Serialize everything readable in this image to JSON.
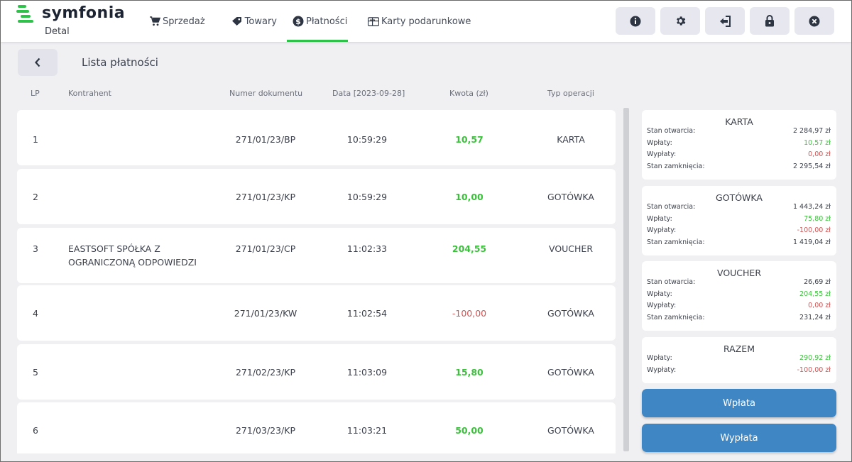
{
  "brand": {
    "name": "symfonia",
    "sub": "Detal",
    "accent": "#2fc24a"
  },
  "nav": [
    {
      "label": "Sprzedaż",
      "icon": "cart-icon"
    },
    {
      "label": "Towary",
      "icon": "tag-icon"
    },
    {
      "label": "Płatności",
      "icon": "dollar-circle-icon",
      "active": true
    },
    {
      "label": "Karty podarunkowe",
      "icon": "gift-card-icon"
    }
  ],
  "toolbar": [
    "info-icon",
    "gear-icon",
    "logout-icon",
    "lock-icon",
    "close-icon"
  ],
  "page": {
    "title": "Lista płatności"
  },
  "columns": {
    "lp": "LP",
    "kontrahent": "Kontrahent",
    "numer": "Numer dokumentu",
    "data": "Data [2023-09-28]",
    "kwota": "Kwota (zł)",
    "typ": "Typ operacji"
  },
  "rows": [
    {
      "lp": "1",
      "kontrahent": "",
      "numer": "271/01/23/BP",
      "time": "10:59:29",
      "kwota": "10,57",
      "sign": "pos",
      "typ": "KARTA"
    },
    {
      "lp": "2",
      "kontrahent": "",
      "numer": "271/01/23/KP",
      "time": "10:59:29",
      "kwota": "10,00",
      "sign": "pos",
      "typ": "GOTÓWKA"
    },
    {
      "lp": "3",
      "kontrahent": "EASTSOFT SPÓŁKA Z OGRANICZONĄ ODPOWIEDZI",
      "kontrahent_l1": "EASTSOFT SPÓŁKA Z",
      "kontrahent_l2": "OGRANICZONĄ ODPOWIEDZI",
      "numer": "271/01/23/CP",
      "time": "11:02:33",
      "kwota": "204,55",
      "sign": "pos",
      "typ": "VOUCHER"
    },
    {
      "lp": "4",
      "kontrahent": "",
      "numer": "271/01/23/KW",
      "time": "11:02:54",
      "kwota": "-100,00",
      "sign": "neg",
      "typ": "GOTÓWKA"
    },
    {
      "lp": "5",
      "kontrahent": "",
      "numer": "271/02/23/KP",
      "time": "11:03:09",
      "kwota": "15,80",
      "sign": "pos",
      "typ": "GOTÓWKA"
    },
    {
      "lp": "6",
      "kontrahent": "",
      "numer": "271/03/23/KP",
      "time": "11:03:21",
      "kwota": "50,00",
      "sign": "pos",
      "typ": "GOTÓWKA"
    }
  ],
  "summary": [
    {
      "title": "KARTA",
      "items": [
        {
          "k": "Stan otwarcia:",
          "v": "2 284,97 zł",
          "c": ""
        },
        {
          "k": "Wpłaty:",
          "v": "10,57 zł",
          "c": "pos"
        },
        {
          "k": "Wypłaty:",
          "v": "0,00 zł",
          "c": "neg"
        },
        {
          "k": "Stan zamknięcia:",
          "v": "2 295,54 zł",
          "c": ""
        }
      ]
    },
    {
      "title": "GOTÓWKA",
      "items": [
        {
          "k": "Stan otwarcia:",
          "v": "1 443,24 zł",
          "c": ""
        },
        {
          "k": "Wpłaty:",
          "v": "75,80 zł",
          "c": "pos"
        },
        {
          "k": "Wypłaty:",
          "v": "-100,00 zł",
          "c": "neg"
        },
        {
          "k": "Stan zamknięcia:",
          "v": "1 419,04 zł",
          "c": ""
        }
      ]
    },
    {
      "title": "VOUCHER",
      "items": [
        {
          "k": "Stan otwarcia:",
          "v": "26,69 zł",
          "c": ""
        },
        {
          "k": "Wpłaty:",
          "v": "204,55 zł",
          "c": "pos"
        },
        {
          "k": "Wypłaty:",
          "v": "0,00 zł",
          "c": "neg"
        },
        {
          "k": "Stan zamknięcia:",
          "v": "231,24 zł",
          "c": ""
        }
      ]
    },
    {
      "title": "RAZEM",
      "items": [
        {
          "k": "Wpłaty:",
          "v": "290,92 zł",
          "c": "pos"
        },
        {
          "k": "Wypłaty:",
          "v": "-100,00 zł",
          "c": "neg"
        }
      ]
    }
  ],
  "actions": {
    "wplata": "Wpłata",
    "wyplata": "Wypłata"
  },
  "colors": {
    "positive": "#3ac23a",
    "negative": "#d35454",
    "button": "#3f86c4"
  }
}
